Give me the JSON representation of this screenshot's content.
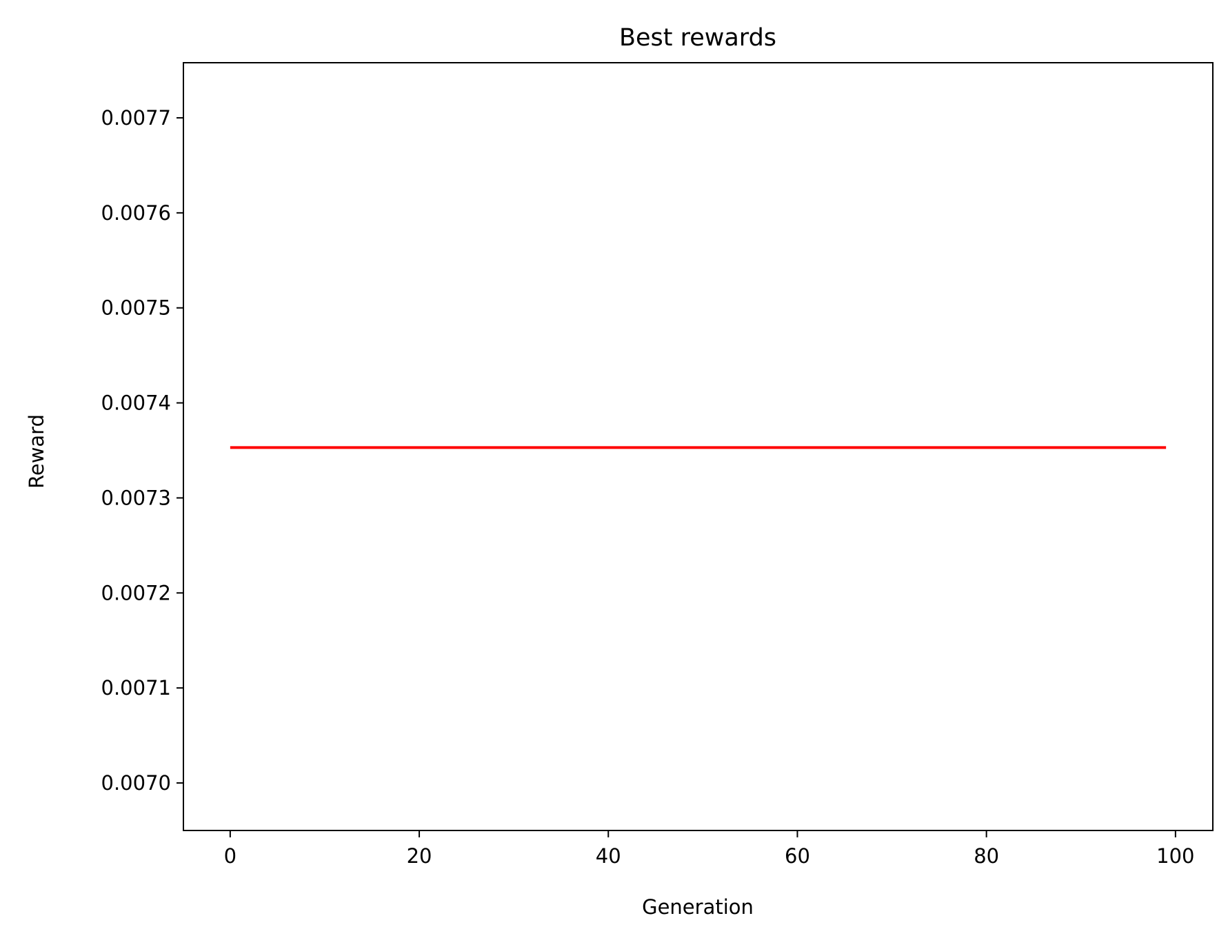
{
  "chart_data": {
    "type": "line",
    "title": "Best rewards",
    "xlabel": "Generation",
    "ylabel": "Reward",
    "xlim": [
      -4.95,
      103.95
    ],
    "ylim": [
      0.00695,
      0.007758
    ],
    "xticks": [
      0,
      20,
      40,
      60,
      80,
      100
    ],
    "xtick_labels": [
      "0",
      "20",
      "40",
      "60",
      "80",
      "100"
    ],
    "yticks": [
      0.007,
      0.0071,
      0.0072,
      0.0073,
      0.0074,
      0.0075,
      0.0076,
      0.0077
    ],
    "ytick_labels": [
      "0.0070",
      "0.0071",
      "0.0072",
      "0.0073",
      "0.0074",
      "0.0075",
      "0.0076",
      "0.0077"
    ],
    "grid": false,
    "series": [
      {
        "color": "#ff0000",
        "x_start": 0,
        "x_end": 99,
        "constant_value": 0.007353
      }
    ]
  }
}
